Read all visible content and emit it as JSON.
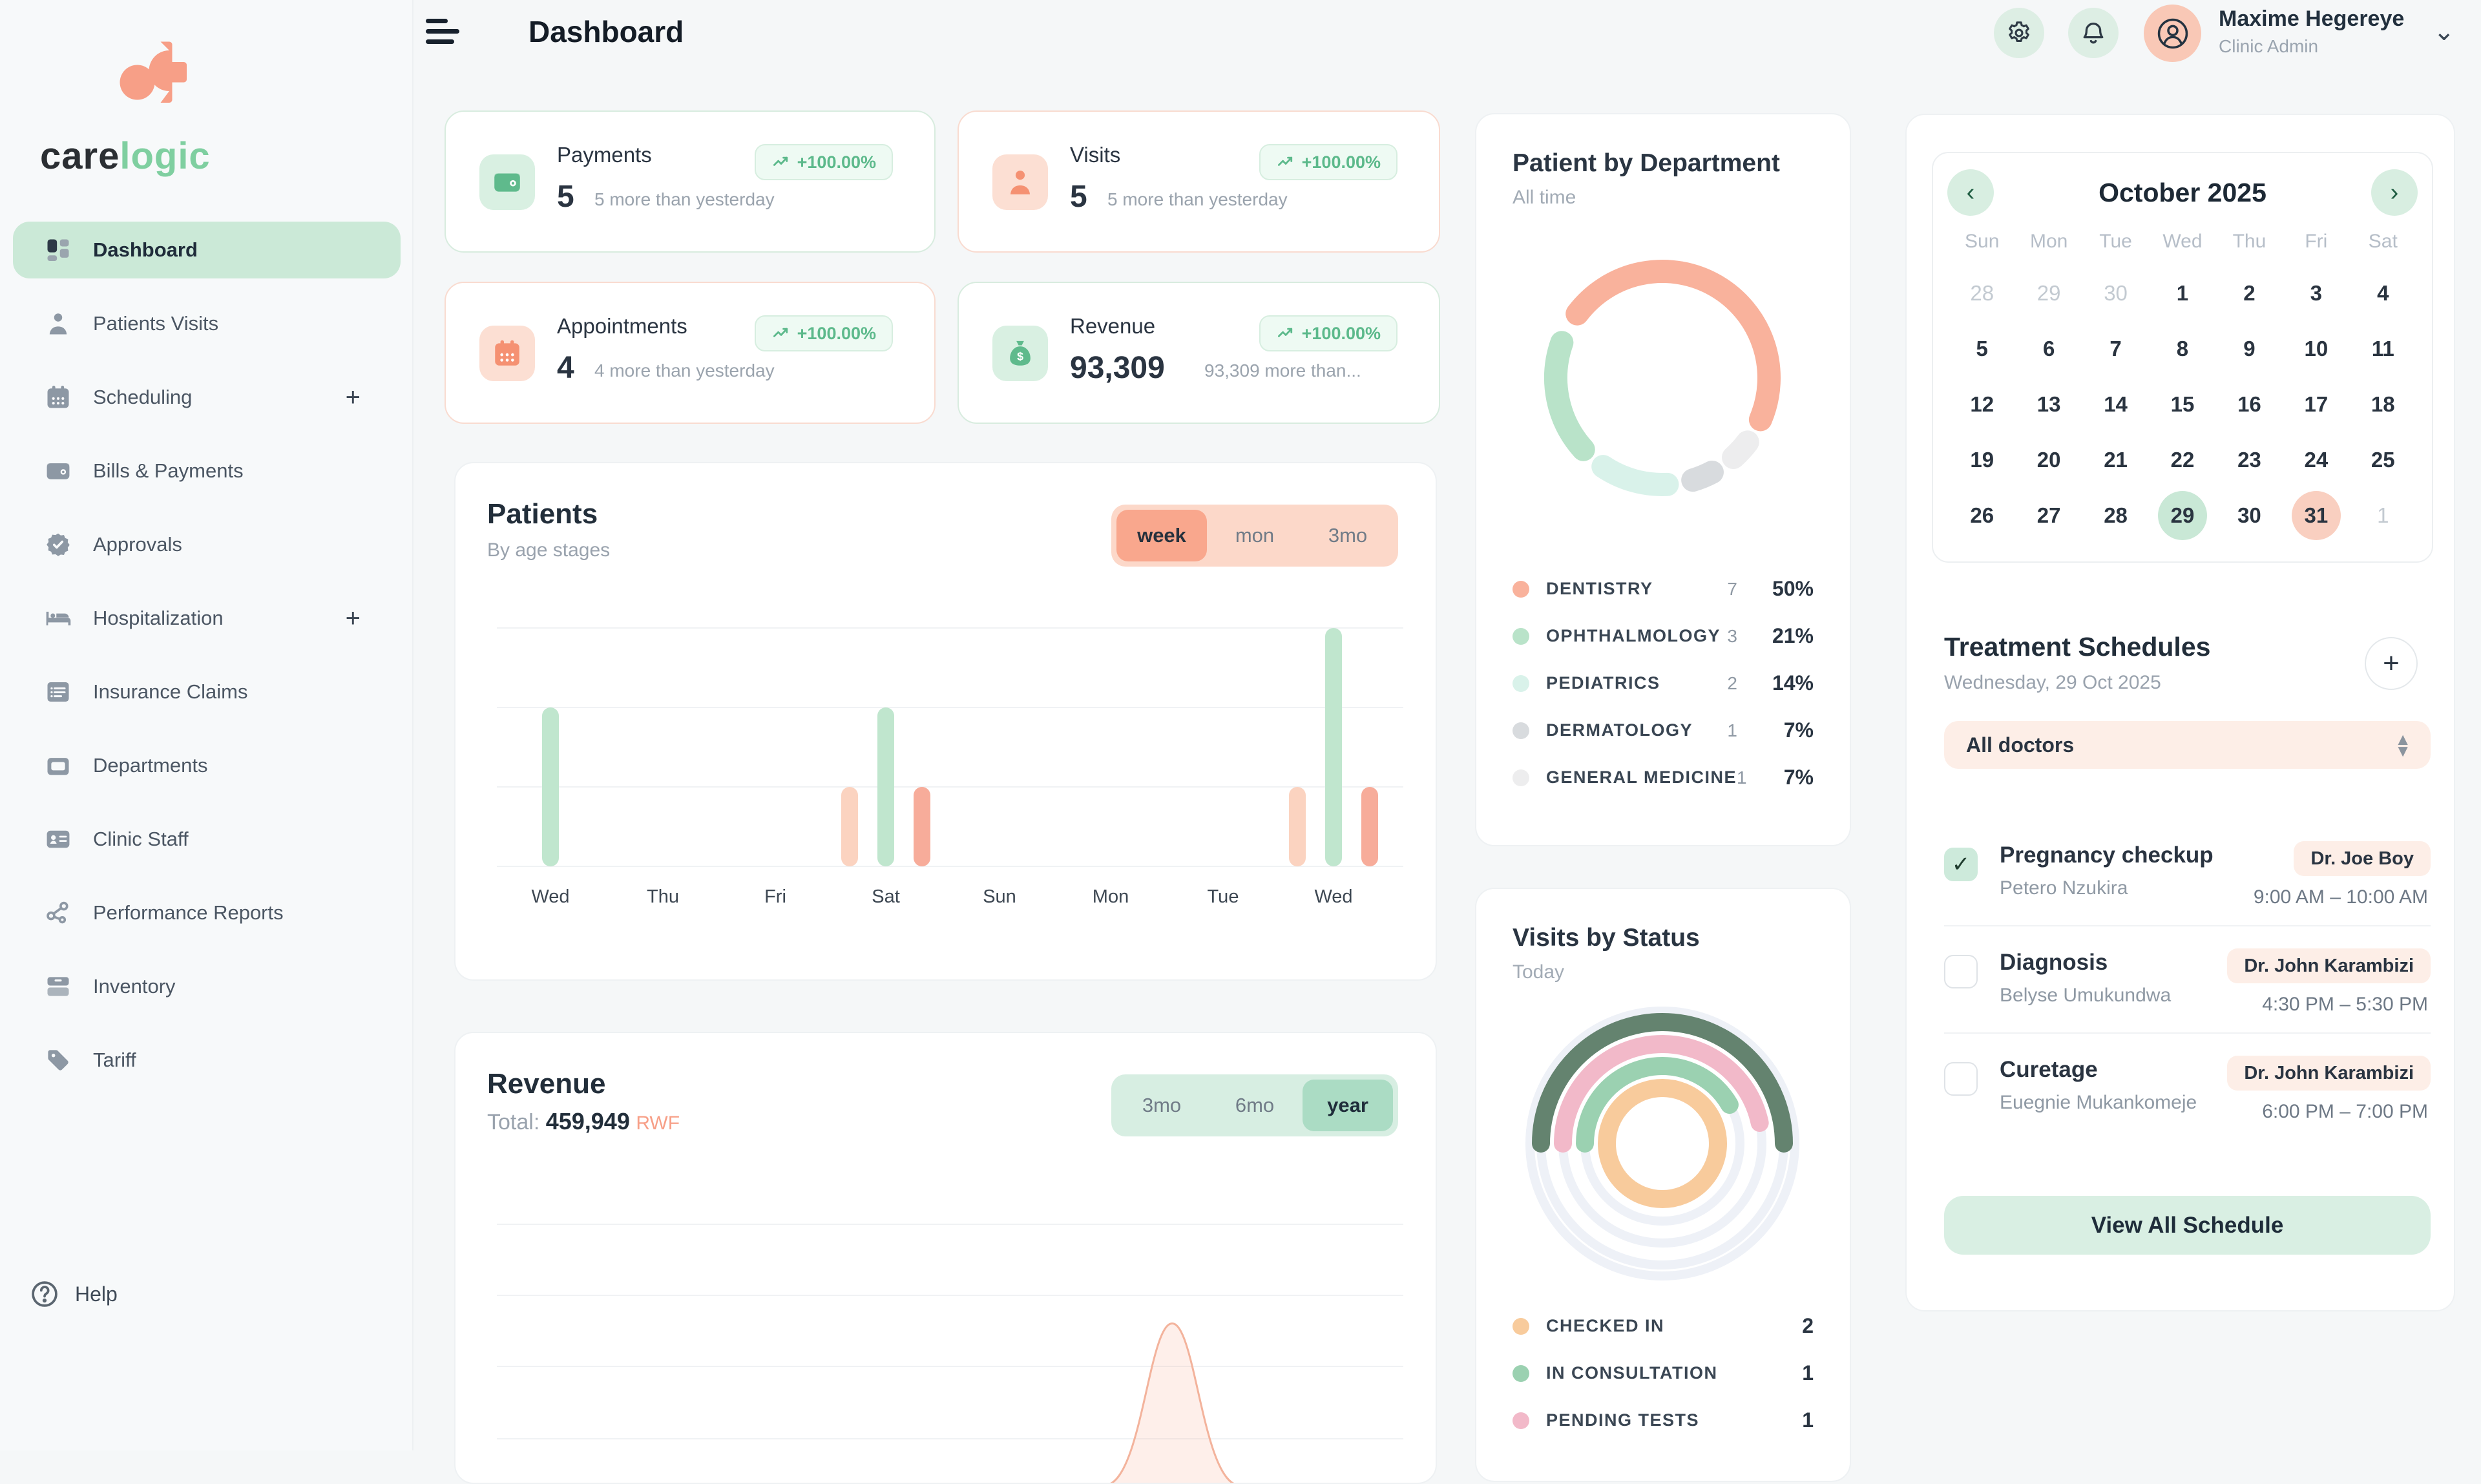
{
  "app": {
    "logo_care": "care",
    "logo_logic": "logic"
  },
  "header": {
    "title": "Dashboard",
    "user_name": "Maxime Hegereye",
    "user_role": "Clinic Admin"
  },
  "sidebar": {
    "items": [
      {
        "label": "Dashboard",
        "icon": "dashboard",
        "active": true,
        "plus": false
      },
      {
        "label": "Patients Visits",
        "icon": "person",
        "active": false,
        "plus": false
      },
      {
        "label": "Scheduling",
        "icon": "calendar",
        "active": false,
        "plus": true
      },
      {
        "label": "Bills & Payments",
        "icon": "wallet",
        "active": false,
        "plus": false
      },
      {
        "label": "Approvals",
        "icon": "check-badge",
        "active": false,
        "plus": false
      },
      {
        "label": "Hospitalization",
        "icon": "bed",
        "active": false,
        "plus": true
      },
      {
        "label": "Insurance Claims",
        "icon": "list",
        "active": false,
        "plus": false
      },
      {
        "label": "Departments",
        "icon": "archive",
        "active": false,
        "plus": false
      },
      {
        "label": "Clinic Staff",
        "icon": "id-card",
        "active": false,
        "plus": false
      },
      {
        "label": "Performance Reports",
        "icon": "nodes",
        "active": false,
        "plus": false
      },
      {
        "label": "Inventory",
        "icon": "boxes",
        "active": false,
        "plus": false
      },
      {
        "label": "Tariff",
        "icon": "tag",
        "active": false,
        "plus": false
      }
    ],
    "help_label": "Help"
  },
  "stats": [
    {
      "title": "Payments",
      "icon": "wallet",
      "accent": "mint",
      "badge": "+100.00%",
      "value": "5",
      "sub": "5 more than yesterday"
    },
    {
      "title": "Visits",
      "icon": "person",
      "accent": "peach",
      "badge": "+100.00%",
      "value": "5",
      "sub": "5 more than yesterday"
    },
    {
      "title": "Appointments",
      "icon": "calendar",
      "accent": "peach",
      "badge": "+100.00%",
      "value": "4",
      "sub": "4 more than yesterday"
    },
    {
      "title": "Revenue",
      "icon": "money-bag",
      "accent": "mint",
      "badge": "+100.00%",
      "value": "93,309",
      "sub": "93,309 more than..."
    }
  ],
  "patients_card": {
    "title": "Patients",
    "subtitle": "By age stages",
    "toggles": [
      "week",
      "mon",
      "3mo"
    ],
    "active_toggle": "week"
  },
  "revenue_card": {
    "title": "Revenue",
    "total_label": "Total:",
    "total_value": "459,949",
    "currency": "RWF",
    "toggles": [
      "3mo",
      "6mo",
      "year"
    ],
    "active_toggle": "year"
  },
  "department_card": {
    "title": "Patient by Department",
    "subtitle": "All time"
  },
  "visits_card": {
    "title": "Visits by Status",
    "subtitle": "Today",
    "legend": [
      {
        "label": "CHECKED IN",
        "count": 2,
        "color": "#f8cb9c"
      },
      {
        "label": "IN CONSULTATION",
        "count": 1,
        "color": "#9bd1b1"
      },
      {
        "label": "PENDING TESTS",
        "count": 1,
        "color": "#f2b9c9"
      }
    ]
  },
  "calendar": {
    "month": "October 2025",
    "weekdays": [
      "Sun",
      "Mon",
      "Tue",
      "Wed",
      "Thu",
      "Fri",
      "Sat"
    ],
    "rows": [
      [
        {
          "d": "28",
          "muted": true
        },
        {
          "d": "29",
          "muted": true
        },
        {
          "d": "30",
          "muted": true
        },
        {
          "d": "1"
        },
        {
          "d": "2"
        },
        {
          "d": "3"
        },
        {
          "d": "4"
        }
      ],
      [
        {
          "d": "5"
        },
        {
          "d": "6"
        },
        {
          "d": "7"
        },
        {
          "d": "8"
        },
        {
          "d": "9"
        },
        {
          "d": "10"
        },
        {
          "d": "11"
        }
      ],
      [
        {
          "d": "12"
        },
        {
          "d": "13"
        },
        {
          "d": "14"
        },
        {
          "d": "15"
        },
        {
          "d": "16"
        },
        {
          "d": "17"
        },
        {
          "d": "18"
        }
      ],
      [
        {
          "d": "19"
        },
        {
          "d": "20"
        },
        {
          "d": "21"
        },
        {
          "d": "22"
        },
        {
          "d": "23"
        },
        {
          "d": "24"
        },
        {
          "d": "25"
        }
      ],
      [
        {
          "d": "26"
        },
        {
          "d": "27"
        },
        {
          "d": "28"
        },
        {
          "d": "29",
          "hl": "mint"
        },
        {
          "d": "30"
        },
        {
          "d": "31",
          "hl": "peach"
        },
        {
          "d": "1",
          "muted": true
        }
      ]
    ]
  },
  "schedule": {
    "title": "Treatment Schedules",
    "date": "Wednesday, 29 Oct 2025",
    "filter": "All doctors",
    "items": [
      {
        "title": "Pregnancy checkup",
        "patient": "Petero Nzukira",
        "doctor": "Dr. Joe Boy",
        "time": "9:00 AM – 10:00 AM",
        "checked": true
      },
      {
        "title": "Diagnosis",
        "patient": "Belyse Umukundwa",
        "doctor": "Dr. John Karambizi",
        "time": "4:30 PM – 5:30 PM",
        "checked": false
      },
      {
        "title": "Curetage",
        "patient": "Euegnie Mukankomeje",
        "doctor": "Dr. John Karambizi",
        "time": "6:00 PM – 7:00 PM",
        "checked": false
      }
    ],
    "button": "View All Schedule"
  },
  "colors": {
    "accent_salmon": "#f79f87",
    "accent_mint": "#7fcfa0",
    "badge_green": "#5cb98b",
    "sidebar_active_bg": "#cbe9d7"
  },
  "chart_data": [
    {
      "id": "patients_by_age",
      "type": "bar",
      "title": "Patients",
      "subtitle": "By age stages",
      "categories": [
        "Wed",
        "Thu",
        "Fri",
        "Sat",
        "Sun",
        "Mon",
        "Tue",
        "Wed"
      ],
      "series": [
        {
          "name": "series-1",
          "color": "#fbd3c0",
          "values": [
            0,
            0,
            0,
            1,
            0,
            0,
            0,
            1
          ]
        },
        {
          "name": "series-2",
          "color": "#c0e6ce",
          "values": [
            2,
            0,
            0,
            2,
            0,
            0,
            0,
            3
          ]
        },
        {
          "name": "series-3",
          "color": "#f7ac9a",
          "values": [
            0,
            0,
            0,
            1,
            0,
            0,
            0,
            1
          ]
        }
      ],
      "ylim": [
        0,
        3
      ],
      "gridlines": 4,
      "legend_position": "none"
    },
    {
      "id": "revenue_year",
      "type": "area",
      "title": "Revenue",
      "total": "459,949 RWF",
      "series": [
        {
          "name": "revenue",
          "color": "#f3b39c",
          "fill": "rgba(249,166,138,0.18)",
          "points_norm": [
            [
              0,
              0
            ],
            [
              0.7,
              0
            ],
            [
              0.745,
              0.62
            ],
            [
              0.79,
              0
            ],
            [
              1,
              0
            ]
          ],
          "note": "single narrow peak near 75% of x-range; chart cropped at viewport bottom"
        }
      ],
      "gridlines": 4
    },
    {
      "id": "patient_by_department",
      "type": "pie",
      "donut": true,
      "title": "Patient by Department",
      "subtitle": "All time",
      "segments": [
        {
          "label": "DENTISTRY",
          "count": 7,
          "pct": 50,
          "color": "#f9b29c"
        },
        {
          "label": "OPHTHALMOLOGY",
          "count": 3,
          "pct": 21,
          "color": "#b9e3c9"
        },
        {
          "label": "PEDIATRICS",
          "count": 2,
          "pct": 14,
          "color": "#d9f2ea"
        },
        {
          "label": "DERMATOLOGY",
          "count": 1,
          "pct": 7,
          "color": "#d8dbde"
        },
        {
          "label": "GENERAL MEDICINE",
          "count": 1,
          "pct": 7,
          "color": "#ededee"
        }
      ],
      "legend_position": "bottom"
    },
    {
      "id": "visits_by_status",
      "type": "radial-arcs",
      "title": "Visits by Status",
      "subtitle": "Today",
      "arcs": [
        {
          "name": "outer-arc",
          "color": "#64836f",
          "sweep_deg": 180
        },
        {
          "name": "PENDING TESTS",
          "color": "#f2b9c9",
          "sweep_deg": 168,
          "count": 1
        },
        {
          "name": "IN CONSULTATION",
          "color": "#9bd1b1",
          "sweep_deg": 150,
          "count": 1
        },
        {
          "name": "CHECKED IN",
          "color": "#f8cb9c",
          "sweep_deg": 360,
          "count": 2
        }
      ]
    }
  ]
}
